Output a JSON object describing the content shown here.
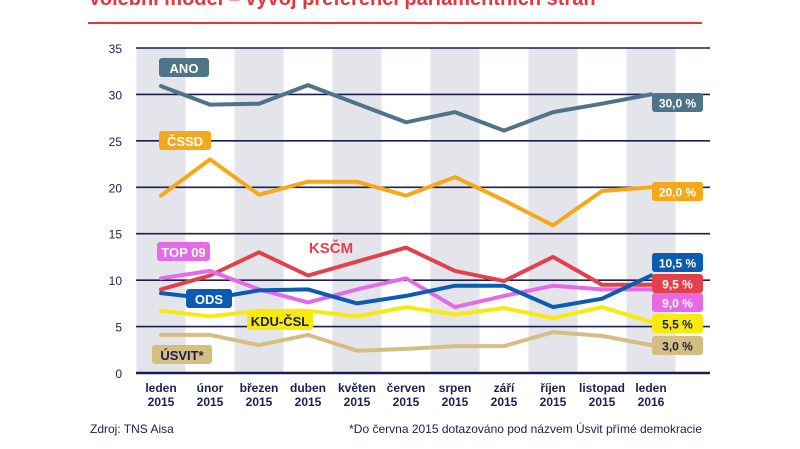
{
  "header": {
    "title": "Volební model – vývoj preferencí parlamentních stran"
  },
  "footer": {
    "source": "Zdroj: TNS Aisa",
    "note": "*Do června 2015 dotazováno pod názvem Úsvit přímé demokracie"
  },
  "colors": {
    "navy": "#1a1f4e",
    "shade": "#e4e5ea",
    "red_rule": "#e8343c"
  },
  "chart_data": {
    "type": "line",
    "title": "Volební model – vývoj preferencí parlamentních stran",
    "xlabel": "",
    "ylabel": "",
    "ylim": [
      0,
      35
    ],
    "yticks": [
      0,
      5,
      10,
      15,
      20,
      25,
      30,
      35
    ],
    "grid": true,
    "categories": [
      {
        "month": "leden",
        "year": "2015"
      },
      {
        "month": "únor",
        "year": "2015"
      },
      {
        "month": "březen",
        "year": "2015"
      },
      {
        "month": "duben",
        "year": "2015"
      },
      {
        "month": "květen",
        "year": "2015"
      },
      {
        "month": "červen",
        "year": "2015"
      },
      {
        "month": "srpen",
        "year": "2015"
      },
      {
        "month": "září",
        "year": "2015"
      },
      {
        "month": "říjen",
        "year": "2015"
      },
      {
        "month": "listopad",
        "year": "2015"
      },
      {
        "month": "leden",
        "year": "2016"
      }
    ],
    "series": [
      {
        "name": "ANO",
        "color": "#4f7489",
        "values": [
          30.9,
          28.9,
          29.0,
          31.0,
          29.0,
          27.0,
          28.1,
          26.1,
          28.1,
          29.0,
          30.0
        ],
        "end_label": "30,0 %"
      },
      {
        "name": "ČSSD",
        "color": "#f5a81c",
        "values": [
          19.1,
          23.0,
          19.2,
          20.6,
          20.6,
          19.1,
          21.1,
          18.6,
          15.9,
          19.6,
          20.0
        ],
        "end_label": "20,0 %"
      },
      {
        "name": "KSČM",
        "color": "#e2404d",
        "values": [
          9.0,
          10.5,
          13.0,
          10.5,
          12.0,
          13.5,
          11.0,
          9.9,
          12.5,
          9.5,
          9.5
        ],
        "end_label": "9,5 %"
      },
      {
        "name": "TOP 09",
        "color": "#e46ae6",
        "values": [
          10.2,
          11.0,
          9.0,
          7.6,
          9.0,
          10.2,
          7.1,
          8.3,
          9.4,
          9.0,
          9.0
        ],
        "end_label": "9,0 %"
      },
      {
        "name": "ODS",
        "color": "#0a5cb2",
        "values": [
          8.6,
          8.0,
          8.9,
          9.0,
          7.5,
          8.3,
          9.4,
          9.4,
          7.1,
          8.0,
          10.5
        ],
        "end_label": "10,5 %"
      },
      {
        "name": "KDU-ČSL",
        "color": "#f7ea10",
        "values": [
          6.7,
          6.1,
          6.7,
          6.7,
          6.1,
          7.1,
          6.3,
          7.0,
          5.9,
          7.1,
          5.5
        ],
        "end_label": "5,5 %"
      },
      {
        "name": "ÚSVIT*",
        "color": "#d6be83",
        "values": [
          4.1,
          4.1,
          3.0,
          4.1,
          2.4,
          2.6,
          2.9,
          2.9,
          4.4,
          4.0,
          3.0
        ],
        "end_label": "3,0 %"
      }
    ]
  }
}
